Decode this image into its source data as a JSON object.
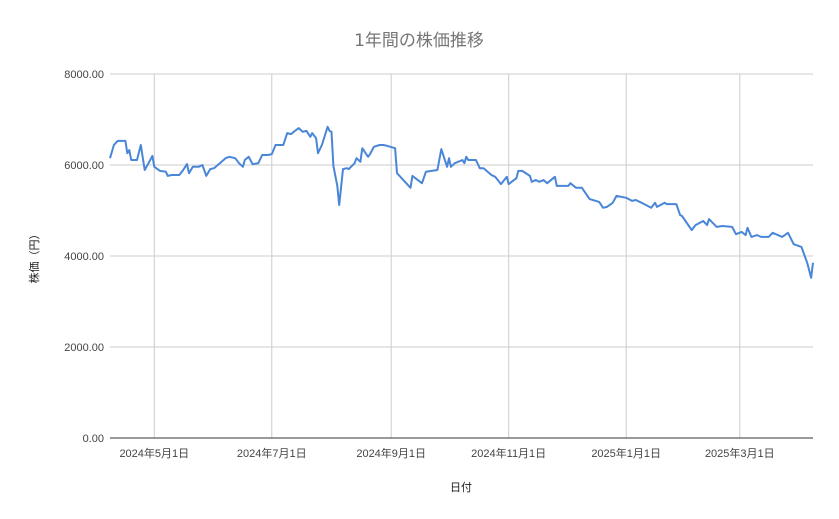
{
  "chart_data": {
    "type": "line",
    "title": "1年間の株価推移",
    "xlabel": "日付",
    "ylabel": "株価（円）",
    "ylim": [
      0,
      8000
    ],
    "xlim": [
      "2024-04-08",
      "2025-04-08"
    ],
    "grid": true,
    "line_color": "#4a86d8",
    "y_ticks": [
      "0.00",
      "2000.00",
      "4000.00",
      "6000.00",
      "8000.00"
    ],
    "y_tick_values": [
      0,
      2000,
      4000,
      6000,
      8000
    ],
    "x_ticks": [
      {
        "date": "2024-05-01",
        "label": "2024年5月1日"
      },
      {
        "date": "2024-07-01",
        "label": "2024年7月1日"
      },
      {
        "date": "2024-09-01",
        "label": "2024年9月1日"
      },
      {
        "date": "2024-11-01",
        "label": "2024年11月1日"
      },
      {
        "date": "2025-01-01",
        "label": "2025年1月1日"
      },
      {
        "date": "2025-03-01",
        "label": "2025年3月1日"
      }
    ],
    "series": [
      {
        "x": [
          "2024-04-08",
          "2024-04-10",
          "2024-04-12",
          "2024-04-16",
          "2024-04-17",
          "2024-04-18",
          "2024-04-19",
          "2024-04-22",
          "2024-04-24",
          "2024-04-26",
          "2024-04-28",
          "2024-04-30",
          "2024-05-01",
          "2024-05-04",
          "2024-05-07",
          "2024-05-08",
          "2024-05-10",
          "2024-05-14",
          "2024-05-16",
          "2024-05-18",
          "2024-05-19",
          "2024-05-21",
          "2024-05-24",
          "2024-05-26",
          "2024-05-28",
          "2024-05-30",
          "2024-06-01",
          "2024-06-04",
          "2024-06-07",
          "2024-06-09",
          "2024-06-12",
          "2024-06-14",
          "2024-06-16",
          "2024-06-17",
          "2024-06-19",
          "2024-06-21",
          "2024-06-24",
          "2024-06-26",
          "2024-06-29",
          "2024-07-01",
          "2024-07-03",
          "2024-07-07",
          "2024-07-09",
          "2024-07-11",
          "2024-07-13",
          "2024-07-15",
          "2024-07-17",
          "2024-07-19",
          "2024-07-21",
          "2024-07-22",
          "2024-07-24",
          "2024-07-25",
          "2024-07-27",
          "2024-07-30",
          "2024-07-31",
          "2024-08-01",
          "2024-08-02",
          "2024-08-04",
          "2024-08-05",
          "2024-08-07",
          "2024-08-09",
          "2024-08-10",
          "2024-08-13",
          "2024-08-14",
          "2024-08-16",
          "2024-08-17",
          "2024-08-19",
          "2024-08-20",
          "2024-08-21",
          "2024-08-23",
          "2024-08-26",
          "2024-08-28",
          "2024-08-30",
          "2024-09-03",
          "2024-09-04",
          "2024-09-11",
          "2024-09-12",
          "2024-09-17",
          "2024-09-19",
          "2024-09-25",
          "2024-09-27",
          "2024-09-30",
          "2024-10-01",
          "2024-10-02",
          "2024-10-04",
          "2024-10-08",
          "2024-10-09",
          "2024-10-10",
          "2024-10-11",
          "2024-10-15",
          "2024-10-17",
          "2024-10-19",
          "2024-10-23",
          "2024-10-25",
          "2024-10-28",
          "2024-10-31",
          "2024-11-01",
          "2024-11-05",
          "2024-11-06",
          "2024-11-08",
          "2024-11-12",
          "2024-11-13",
          "2024-11-15",
          "2024-11-17",
          "2024-11-19",
          "2024-11-21",
          "2024-11-25",
          "2024-11-26",
          "2024-12-02",
          "2024-12-03",
          "2024-12-06",
          "2024-12-09",
          "2024-12-13",
          "2024-12-18",
          "2024-12-20",
          "2024-12-22",
          "2024-12-25",
          "2024-12-27",
          "2025-01-01",
          "2025-01-04",
          "2025-01-06",
          "2025-01-09",
          "2025-01-14",
          "2025-01-16",
          "2025-01-17",
          "2025-01-21",
          "2025-01-22",
          "2025-01-27",
          "2025-01-29",
          "2025-01-30",
          "2025-02-04",
          "2025-02-06",
          "2025-02-10",
          "2025-02-12",
          "2025-02-13",
          "2025-02-17",
          "2025-02-20",
          "2025-02-25",
          "2025-02-27",
          "2025-03-02",
          "2025-03-04",
          "2025-03-05",
          "2025-03-07",
          "2025-03-10",
          "2025-03-12",
          "2025-03-16",
          "2025-03-18",
          "2025-03-23",
          "2025-03-26",
          "2025-03-29",
          "2025-04-02",
          "2025-04-05",
          "2025-04-07",
          "2025-04-08"
        ],
        "y": [
          6150,
          6440,
          6530,
          6530,
          6260,
          6330,
          6110,
          6110,
          6440,
          5890,
          6040,
          6200,
          5960,
          5870,
          5850,
          5760,
          5780,
          5780,
          5890,
          6020,
          5820,
          5960,
          5960,
          6000,
          5760,
          5910,
          5930,
          6040,
          6150,
          6180,
          6150,
          6040,
          5960,
          6110,
          6180,
          6020,
          6040,
          6220,
          6220,
          6240,
          6440,
          6440,
          6700,
          6680,
          6750,
          6810,
          6730,
          6750,
          6620,
          6700,
          6590,
          6260,
          6440,
          6840,
          6750,
          6730,
          5980,
          5540,
          5120,
          5910,
          5930,
          5910,
          6040,
          6150,
          6070,
          6370,
          6240,
          6180,
          6240,
          6400,
          6440,
          6440,
          6420,
          6370,
          5820,
          5500,
          5760,
          5600,
          5850,
          5890,
          6350,
          5960,
          6150,
          5960,
          6040,
          6110,
          6040,
          6180,
          6110,
          6110,
          5930,
          5930,
          5780,
          5740,
          5580,
          5740,
          5580,
          5710,
          5870,
          5870,
          5760,
          5630,
          5670,
          5630,
          5670,
          5600,
          5740,
          5540,
          5540,
          5600,
          5500,
          5500,
          5250,
          5190,
          5060,
          5080,
          5170,
          5320,
          5280,
          5210,
          5230,
          5170,
          5060,
          5170,
          5080,
          5170,
          5140,
          5140,
          4900,
          4880,
          4570,
          4680,
          4770,
          4680,
          4810,
          4640,
          4660,
          4640,
          4480,
          4530,
          4460,
          4620,
          4420,
          4460,
          4420,
          4420,
          4510,
          4420,
          4510,
          4260,
          4200,
          3850,
          3520,
          3850
        ]
      }
    ]
  }
}
